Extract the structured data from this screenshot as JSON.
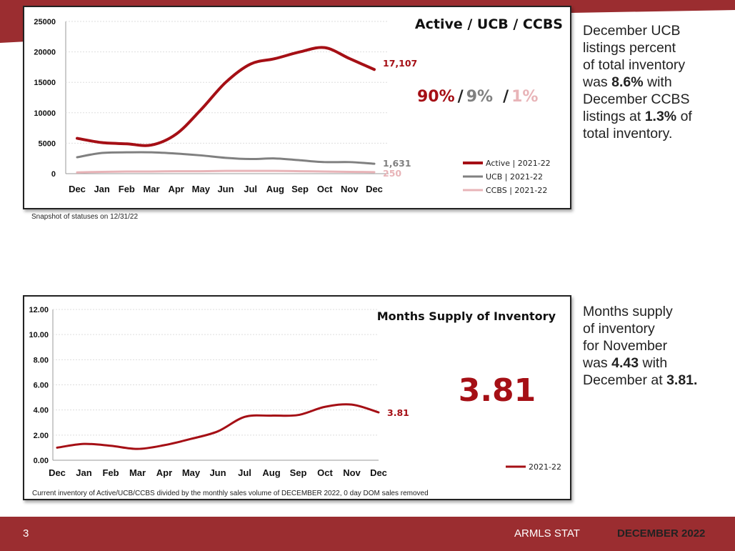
{
  "colors": {
    "active": "#a50f15",
    "ucb": "#808080",
    "ccbs": "#e8b4b8",
    "accent": "#9b2d30",
    "grid": "#dddddd"
  },
  "top_panel": {
    "caption": "Snapshot of statuses on 12/31/22",
    "side_text": {
      "line1": "December UCB",
      "line2": "listings percent",
      "line3": "of total inventory",
      "line4_pre": "was ",
      "line4_bold": "8.6%",
      "line4_post": " with",
      "line5": "December CCBS",
      "line6_pre": "listings at ",
      "line6_bold": "1.3%",
      "line6_post": " of",
      "line7": "total inventory."
    }
  },
  "bottom_panel": {
    "caption": "Current inventory of Active/UCB/CCBS divided by the monthly sales volume of DECEMBER 2022, 0 day DOM sales removed",
    "side_text": {
      "line1": "Months supply",
      "line2": "of inventory",
      "line3": "for November",
      "line4_pre": "was ",
      "line4_bold": "4.43",
      "line4_post": " with",
      "line5_pre": "December at ",
      "line5_bold": "3.81."
    }
  },
  "footer": {
    "page_number": "3",
    "stat_label": "ARMLS STAT",
    "month_label": "DECEMBER 2022"
  },
  "chart_data": [
    {
      "type": "line",
      "title": "Active / UCB / CCBS",
      "categories": [
        "Dec",
        "Jan",
        "Feb",
        "Mar",
        "Apr",
        "May",
        "Jun",
        "Jul",
        "Aug",
        "Sep",
        "Oct",
        "Nov",
        "Dec"
      ],
      "ylim": [
        0,
        25000
      ],
      "yticks": [
        0,
        5000,
        10000,
        15000,
        20000,
        25000
      ],
      "ytick_labels": [
        "0",
        "5000",
        "10000",
        "15000",
        "20000",
        "25000"
      ],
      "grid": true,
      "legend_position": "bottom-right",
      "series": [
        {
          "name": "Active | 2021-22",
          "color_key": "active",
          "width": 4,
          "values": [
            5800,
            5100,
            4900,
            4700,
            6500,
            10500,
            15000,
            18000,
            18900,
            20000,
            20700,
            18900,
            17107
          ],
          "end_label": "17,107"
        },
        {
          "name": "UCB | 2021-22",
          "color_key": "ucb",
          "width": 3,
          "values": [
            2700,
            3400,
            3500,
            3500,
            3300,
            3000,
            2600,
            2400,
            2500,
            2200,
            1900,
            1900,
            1631
          ],
          "end_label": "1,631"
        },
        {
          "name": "CCBS | 2021-22",
          "color_key": "ccbs",
          "width": 3,
          "values": [
            200,
            300,
            350,
            350,
            400,
            400,
            450,
            450,
            450,
            400,
            350,
            300,
            250
          ],
          "end_label": "250"
        }
      ],
      "share_labels": [
        {
          "text": "90%",
          "color_key": "active"
        },
        {
          "text": "/",
          "color_key": "dark"
        },
        {
          "text": "9%",
          "color_key": "ucb"
        },
        {
          "text": "/",
          "color_key": "dark"
        },
        {
          "text": "1%",
          "color_key": "ccbs"
        }
      ]
    },
    {
      "type": "line",
      "title": "Months Supply of Inventory",
      "categories": [
        "Dec",
        "Jan",
        "Feb",
        "Mar",
        "Apr",
        "May",
        "Jun",
        "Jul",
        "Aug",
        "Sep",
        "Oct",
        "Nov",
        "Dec"
      ],
      "ylim": [
        0,
        12
      ],
      "yticks": [
        0,
        2,
        4,
        6,
        8,
        10,
        12
      ],
      "ytick_labels": [
        "0.00",
        "2.00",
        "4.00",
        "6.00",
        "8.00",
        "10.00",
        "12.00"
      ],
      "grid": true,
      "legend_position": "bottom-right",
      "series": [
        {
          "name": "2021-22",
          "color_key": "active",
          "width": 3,
          "values": [
            1.0,
            1.3,
            1.15,
            0.9,
            1.2,
            1.7,
            2.3,
            3.45,
            3.55,
            3.6,
            4.25,
            4.43,
            3.81
          ],
          "end_label": "3.81"
        }
      ],
      "big_label": "3.81"
    }
  ]
}
